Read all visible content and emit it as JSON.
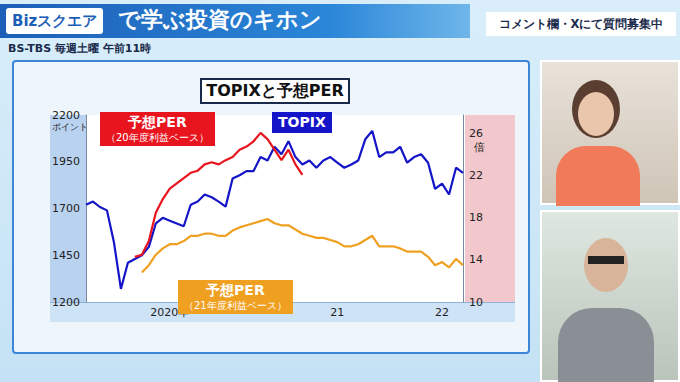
{
  "screen": {
    "logo": "Bizスクエア",
    "banner": "で学ぶ投資のキホン",
    "schedule": "BS-TBS 毎週土曜 午前11時",
    "notice": "コメント欄・Xにて質問募集中"
  },
  "chart_data": {
    "type": "line",
    "title": "TOPIXと予想PER",
    "categories": [
      null,
      null,
      null,
      null,
      null,
      null,
      null,
      null,
      null,
      null,
      null,
      null,
      "2020年",
      null,
      null,
      null,
      null,
      null,
      null,
      null,
      null,
      null,
      null,
      null,
      null,
      null,
      null,
      null,
      null,
      null,
      null,
      null,
      null,
      null,
      null,
      null,
      "21",
      null,
      null,
      null,
      null,
      null,
      null,
      null,
      null,
      null,
      null,
      null,
      null,
      null,
      null,
      "22",
      null,
      null,
      null
    ],
    "series": [
      {
        "name": "TOPIX",
        "color": "#1414c8",
        "values": [
          1720,
          1737,
          1708,
          1690,
          1520,
          1270,
          1410,
          1430,
          1450,
          1495,
          1620,
          1650,
          1635,
          1620,
          1605,
          1720,
          1737,
          1775,
          1760,
          1737,
          1710,
          1860,
          1878,
          1900,
          1900,
          1975,
          1957,
          2030,
          1990,
          2060,
          1975,
          1935,
          1957,
          1918,
          1957,
          1975,
          1945,
          1918,
          1935,
          1957,
          2070,
          2115,
          1975,
          2000,
          2000,
          2030,
          1945,
          1975,
          1990,
          1945,
          1805,
          1833,
          1775,
          1918,
          1890
        ]
      },
      {
        "name": "予想PER（20年度利益ベース）",
        "color": "#e8141e",
        "axis": "y2",
        "values": [
          null,
          null,
          null,
          null,
          null,
          null,
          null,
          14.3,
          14.5,
          15.8,
          18.5,
          19.8,
          20.8,
          21.3,
          21.8,
          22.3,
          22.5,
          23.1,
          23.3,
          23.1,
          23.5,
          23.8,
          24.5,
          24.8,
          25.3,
          26.1,
          25.5,
          24.5,
          23.5,
          24.5,
          23.1,
          22.1,
          null,
          null,
          null,
          null,
          null,
          null,
          null,
          null,
          null,
          null,
          null,
          null,
          null,
          null,
          null,
          null,
          null,
          null,
          null,
          null,
          null,
          null,
          null
        ]
      },
      {
        "name": "予想PER（21年度利益ベース）",
        "color": "#f0a020",
        "axis": "y2",
        "values": [
          null,
          null,
          null,
          null,
          null,
          null,
          null,
          null,
          12.8,
          13.5,
          14.5,
          15.1,
          15.5,
          15.5,
          15.8,
          16.3,
          16.3,
          16.5,
          16.5,
          16.3,
          16.3,
          16.8,
          17.1,
          17.3,
          17.5,
          17.7,
          17.9,
          17.5,
          17.3,
          17.3,
          16.9,
          16.5,
          16.3,
          16.1,
          16.1,
          15.9,
          15.7,
          15.3,
          15.3,
          15.5,
          15.9,
          16.3,
          15.3,
          15.3,
          15.3,
          15.1,
          14.8,
          14.8,
          14.8,
          14.3,
          13.5,
          13.8,
          13.3,
          14.1,
          13.5
        ]
      }
    ],
    "ylabel": "ポイント",
    "y2label": "倍",
    "ylim": [
      1200,
      2200
    ],
    "yticks": [
      1200,
      1450,
      1700,
      1950,
      2200
    ],
    "y2lim": [
      10,
      27.8
    ],
    "y2ticks": [
      10,
      14,
      18,
      22,
      26
    ],
    "grid": false
  }
}
